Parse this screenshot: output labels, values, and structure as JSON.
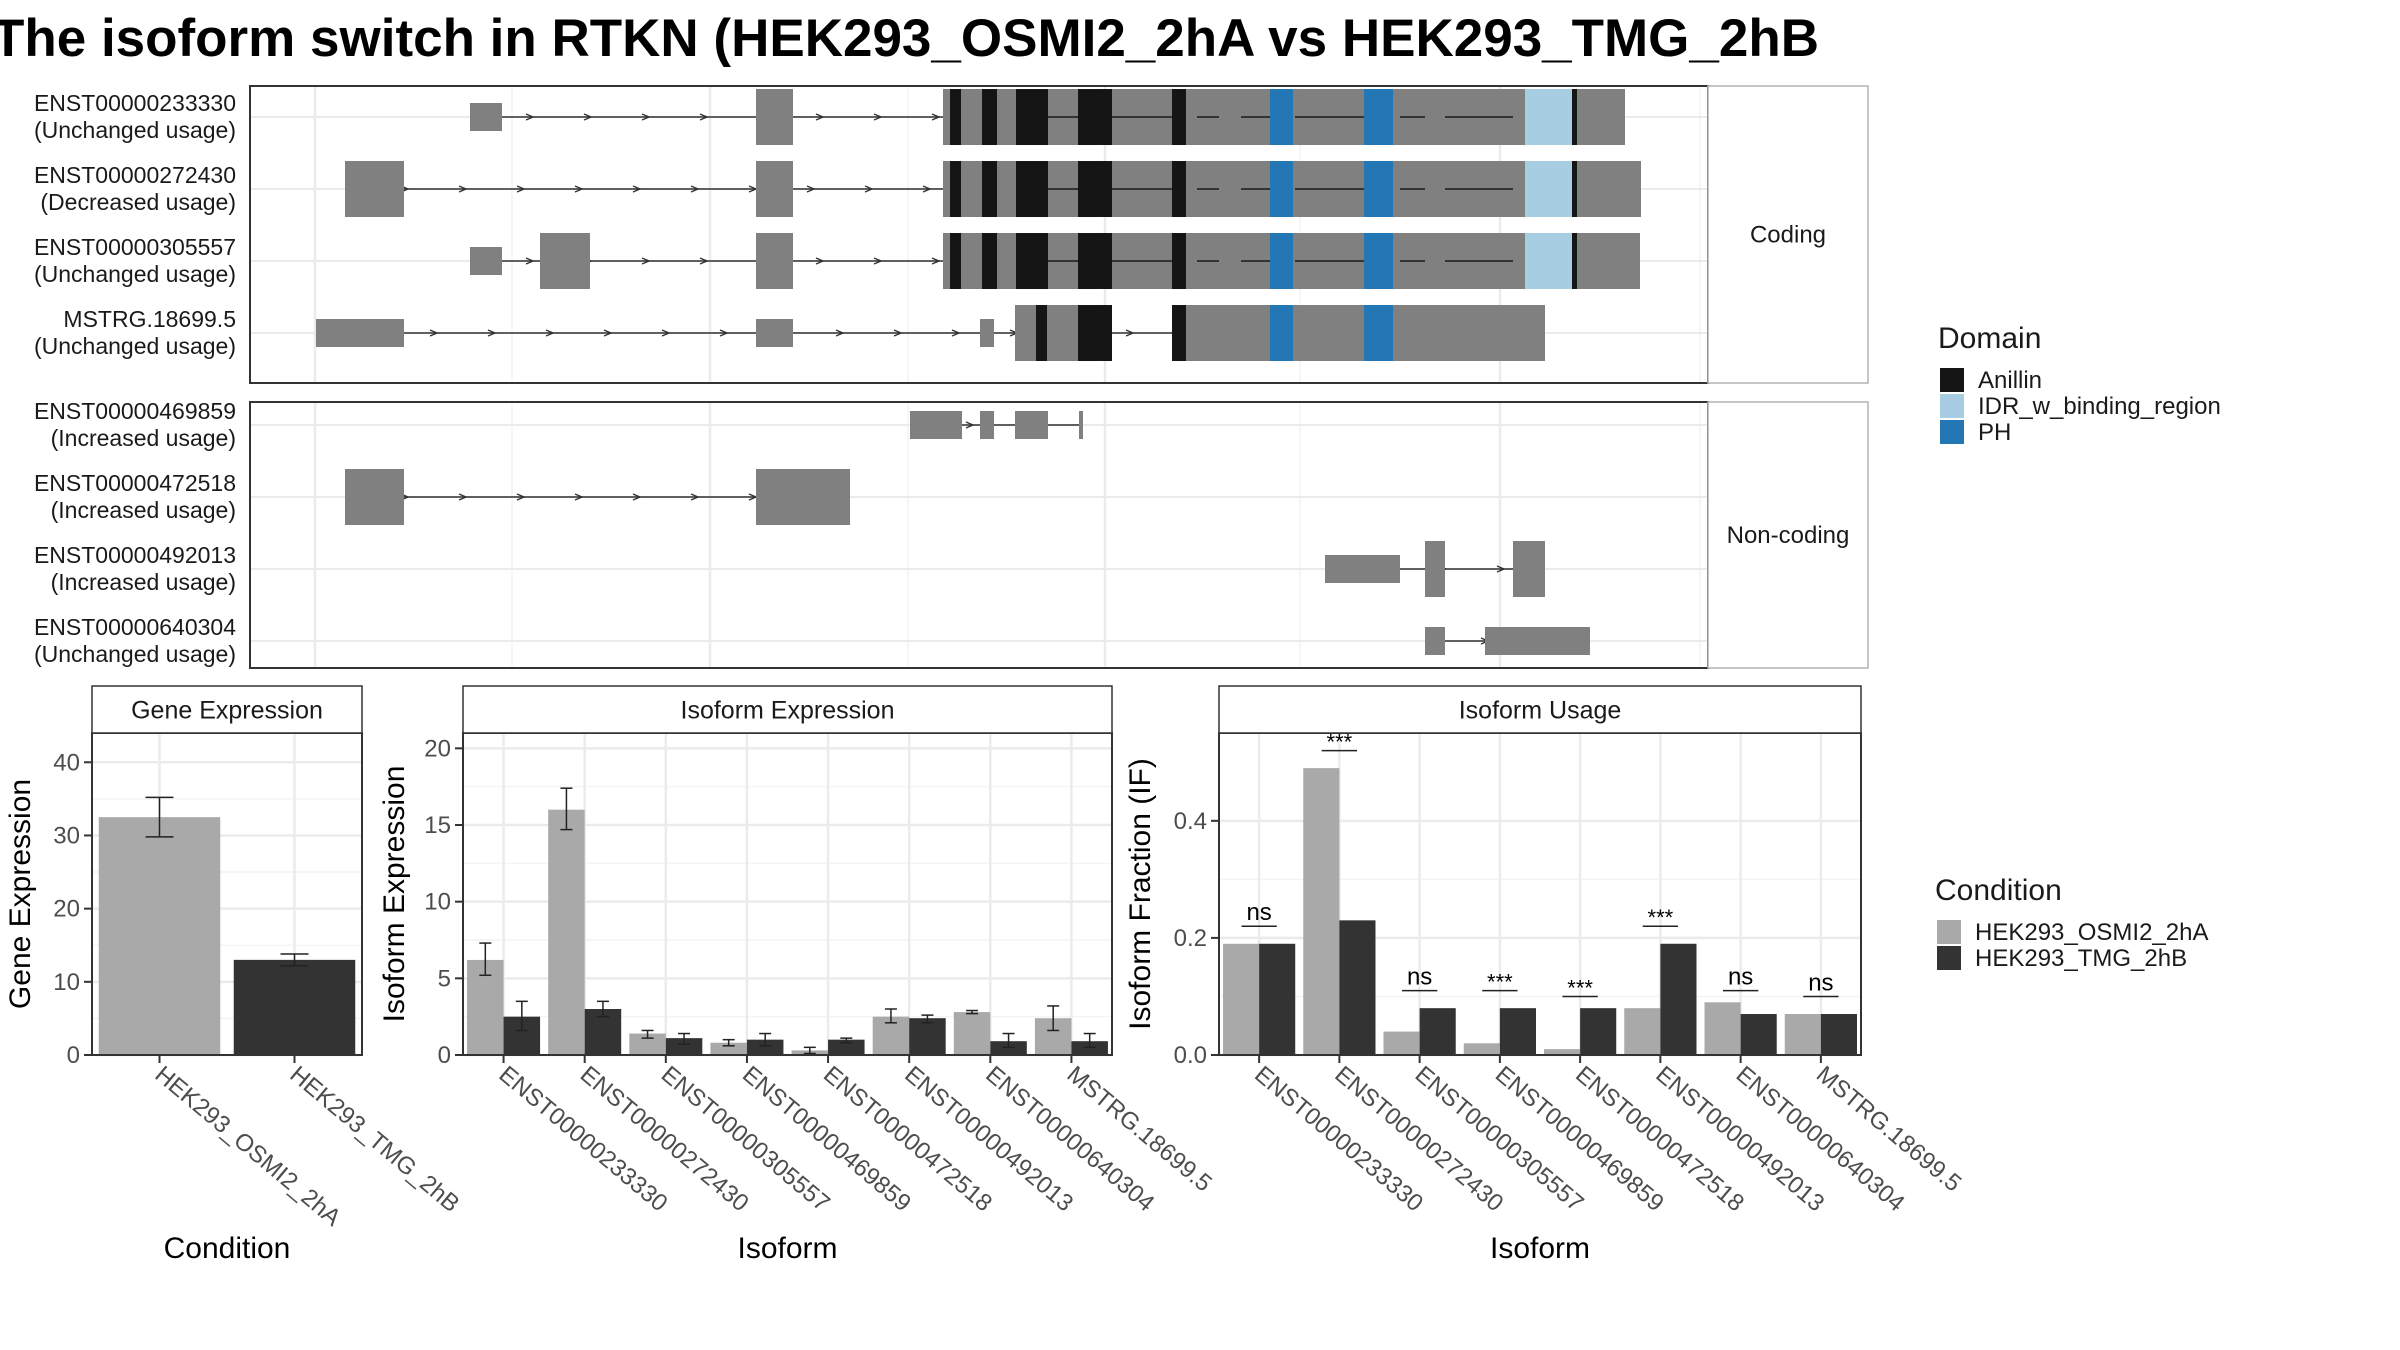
{
  "title": "The isoform switch in RTKN (HEK293_OSMI2_2hA vs HEK293_TMG_2hB",
  "colors": {
    "exon": "#808080",
    "anillin": "#151515",
    "idr": "#a7cde3",
    "ph": "#2377b4",
    "cond_a": "#a9a9a9",
    "cond_b": "#333333",
    "grid": "#ebebeb"
  },
  "structure": {
    "panels": [
      {
        "label": "Coding",
        "transcripts": [
          {
            "id": "ENST00000233330",
            "usage": "(Unchanged usage)"
          },
          {
            "id": "ENST00000272430",
            "usage": "(Decreased usage)"
          },
          {
            "id": "ENST00000305557",
            "usage": "(Unchanged usage)"
          },
          {
            "id": "MSTRG.18699.5",
            "usage": "(Unchanged usage)"
          }
        ]
      },
      {
        "label": "Non-coding",
        "transcripts": [
          {
            "id": "ENST00000469859",
            "usage": "(Increased usage)"
          },
          {
            "id": "ENST00000472518",
            "usage": "(Increased usage)"
          },
          {
            "id": "ENST00000492013",
            "usage": "(Increased usage)"
          },
          {
            "id": "ENST00000640304",
            "usage": "(Unchanged usage)"
          }
        ]
      }
    ]
  },
  "legend_domain": {
    "title": "Domain",
    "items": [
      {
        "label": "Anillin",
        "color": "#151515"
      },
      {
        "label": "IDR_w_binding_region",
        "color": "#a7cde3"
      },
      {
        "label": "PH",
        "color": "#2377b4"
      }
    ]
  },
  "legend_condition": {
    "title": "Condition",
    "items": [
      {
        "label": "HEK293_OSMI2_2hA",
        "color": "#a9a9a9"
      },
      {
        "label": "HEK293_TMG_2hB",
        "color": "#333333"
      }
    ]
  },
  "chart_data": [
    {
      "type": "bar",
      "title": "Gene Expression",
      "xlabel": "Condition",
      "ylabel": "Gene Expression",
      "categories": [
        "HEK293_OSMI2_2hA",
        "HEK293_TMG_2hB"
      ],
      "values": [
        32.5,
        13.0
      ],
      "errors": [
        [
          29.8,
          35.2
        ],
        [
          12.2,
          13.8
        ]
      ],
      "ylim": [
        0,
        44
      ],
      "yticks": [
        0,
        10,
        20,
        30,
        40
      ]
    },
    {
      "type": "bar",
      "title": "Isoform Expression",
      "xlabel": "Isoform",
      "ylabel": "Isoform Expression",
      "categories": [
        "ENST00000233330",
        "ENST00000272430",
        "ENST00000305557",
        "ENST00000469859",
        "ENST00000472518",
        "ENST00000492013",
        "ENST00000640304",
        "MSTRG.18699.5"
      ],
      "series": [
        {
          "name": "HEK293_OSMI2_2hA",
          "values": [
            6.2,
            16.0,
            1.4,
            0.8,
            0.3,
            2.5,
            2.8,
            2.4
          ],
          "errors": [
            [
              5.2,
              7.3
            ],
            [
              14.7,
              17.4
            ],
            [
              1.1,
              1.6
            ],
            [
              0.6,
              1.0
            ],
            [
              0.1,
              0.5
            ],
            [
              2.1,
              3.0
            ],
            [
              2.7,
              2.9
            ],
            [
              1.6,
              3.2
            ]
          ]
        },
        {
          "name": "HEK293_TMG_2hB",
          "values": [
            2.5,
            3.0,
            1.1,
            1.0,
            1.0,
            2.4,
            0.9,
            0.9
          ],
          "errors": [
            [
              1.6,
              3.5
            ],
            [
              2.5,
              3.5
            ],
            [
              0.7,
              1.4
            ],
            [
              0.6,
              1.4
            ],
            [
              0.8,
              1.1
            ],
            [
              2.1,
              2.6
            ],
            [
              0.5,
              1.4
            ],
            [
              0.5,
              1.4
            ]
          ]
        }
      ],
      "ylim": [
        0,
        21
      ],
      "yticks": [
        0,
        5,
        10,
        15,
        20
      ]
    },
    {
      "type": "bar",
      "title": "Isoform Usage",
      "xlabel": "Isoform",
      "ylabel": "Isoform Fraction (IF)",
      "categories": [
        "ENST00000233330",
        "ENST00000272430",
        "ENST00000305557",
        "ENST00000469859",
        "ENST00000472518",
        "ENST00000492013",
        "ENST00000640304",
        "MSTRG.18699.5"
      ],
      "series": [
        {
          "name": "HEK293_OSMI2_2hA",
          "values": [
            0.19,
            0.49,
            0.04,
            0.02,
            0.01,
            0.08,
            0.09,
            0.07
          ]
        },
        {
          "name": "HEK293_TMG_2hB",
          "values": [
            0.19,
            0.23,
            0.08,
            0.08,
            0.08,
            0.19,
            0.07,
            0.07
          ]
        }
      ],
      "significance": [
        "ns",
        "***",
        "ns",
        "***",
        "***",
        "***",
        "ns",
        "ns"
      ],
      "sig_y": [
        0.22,
        0.52,
        0.11,
        0.11,
        0.1,
        0.22,
        0.11,
        0.1
      ],
      "ylim": [
        0,
        0.55
      ],
      "yticks": [
        0.0,
        0.2,
        0.4
      ],
      "ytick_labels": [
        "0.0",
        "0.2",
        "0.4"
      ]
    }
  ]
}
